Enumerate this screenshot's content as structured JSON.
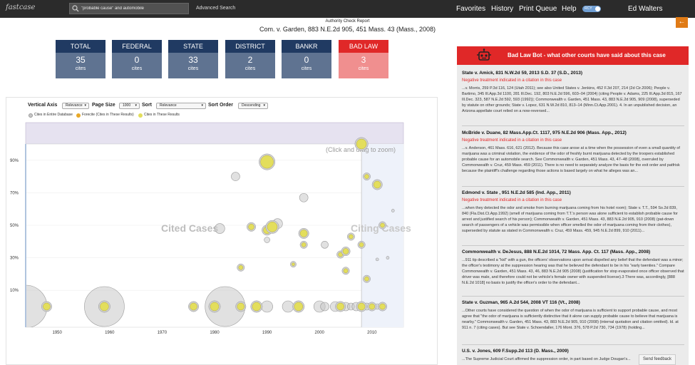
{
  "topbar": {
    "logo": "fastcase",
    "search_value": "\"probable cause\" and automobile",
    "advanced_search": "Advanced Search",
    "nav": [
      "Favorites",
      "History",
      "Print Queue",
      "Help"
    ],
    "toggle_label": "RCY",
    "user": "Ed Walters"
  },
  "report": {
    "title": "Authority Check Report",
    "case": "Com. v. Garden, 883 N.E.2d 905, 451 Mass. 43 (Mass., 2008)"
  },
  "back_arrow": "←",
  "cards": [
    {
      "header": "TOTAL",
      "value": "35",
      "label": "cites"
    },
    {
      "header": "FEDERAL",
      "value": "0",
      "label": "cites"
    },
    {
      "header": "STATE",
      "value": "33",
      "label": "cites"
    },
    {
      "header": "DISTRICT",
      "value": "2",
      "label": "cites"
    },
    {
      "header": "BANKR",
      "value": "0",
      "label": "cites"
    },
    {
      "header": "BAD LAW",
      "value": "3",
      "label": "cites"
    }
  ],
  "controls": {
    "vertical_axis": "Vertical Axis",
    "vertical_axis_value": "Relevance",
    "page_size": "Page Size",
    "page_size_value": "1000",
    "sort": "Sort",
    "sort_value": "Relevance",
    "sort_order": "Sort Order",
    "sort_order_value": "Descending"
  },
  "legend": [
    "Cites in Entire Database",
    "Forecite (Cites in These Results)",
    "Cites in These Results"
  ],
  "colors": {
    "navy": "#203a62",
    "red": "#e02828",
    "orange": "#e07b16",
    "bubble_gray": "#c8c8c8",
    "bubble_yellow": "#e3de5c"
  },
  "chart_data": {
    "type": "scatter",
    "xlim": [
      1944,
      2016
    ],
    "ylim": [
      0,
      100
    ],
    "x_ticks": [
      1950,
      1960,
      1970,
      1980,
      1990,
      2000,
      2010
    ],
    "y_ticks": [
      "10%",
      "30%",
      "50%",
      "70%",
      "90%"
    ],
    "annotations": [
      "Cited Cases",
      "Citing Cases",
      "(Click and drag to zoom)"
    ],
    "cited_boundary_year": 2008,
    "points": [
      {
        "x": 1944,
        "y": 0,
        "r": 30,
        "kind": "gray"
      },
      {
        "x": 1948,
        "y": 0,
        "r": 5,
        "kind": "yellow"
      },
      {
        "x": 1959,
        "y": 0,
        "r": 28,
        "kind": "gray"
      },
      {
        "x": 1959,
        "y": 0,
        "r": 6,
        "kind": "yellow"
      },
      {
        "x": 1982,
        "y": 0,
        "r": 28,
        "kind": "gray"
      },
      {
        "x": 1976,
        "y": 0,
        "r": 5,
        "kind": "yellow"
      },
      {
        "x": 1980,
        "y": 0,
        "r": 6,
        "kind": "yellow"
      },
      {
        "x": 1985,
        "y": 0,
        "r": 5,
        "kind": "yellow"
      },
      {
        "x": 1988,
        "y": 0,
        "r": 6,
        "kind": "yellow"
      },
      {
        "x": 1990,
        "y": 0,
        "r": 8,
        "kind": "gray"
      },
      {
        "x": 1994,
        "y": 0,
        "r": 8,
        "kind": "gray"
      },
      {
        "x": 1996,
        "y": 0,
        "r": 6,
        "kind": "yellow"
      },
      {
        "x": 2000,
        "y": 0,
        "r": 8,
        "kind": "gray"
      },
      {
        "x": 2001,
        "y": 0,
        "r": 6,
        "kind": "gray"
      },
      {
        "x": 2003,
        "y": 0,
        "r": 7,
        "kind": "gray"
      },
      {
        "x": 2004,
        "y": 0,
        "r": 5,
        "kind": "yellow"
      },
      {
        "x": 2005,
        "y": 0,
        "r": 6,
        "kind": "gray"
      },
      {
        "x": 2006,
        "y": 0,
        "r": 5,
        "kind": "gray"
      },
      {
        "x": 2007,
        "y": 0,
        "r": 6,
        "kind": "gray"
      },
      {
        "x": 2008,
        "y": 0,
        "r": 5,
        "kind": "yellow"
      },
      {
        "x": 2009,
        "y": 0,
        "r": 5,
        "kind": "gray"
      },
      {
        "x": 2010,
        "y": 0,
        "r": 4,
        "kind": "yellow"
      },
      {
        "x": 2011,
        "y": 0,
        "r": 4,
        "kind": "gray"
      },
      {
        "x": 2012,
        "y": 0,
        "r": 4,
        "kind": "yellow"
      },
      {
        "x": 1985,
        "y": 24,
        "r": 3,
        "kind": "yellow"
      },
      {
        "x": 1981,
        "y": 48,
        "r": 7,
        "kind": "gray"
      },
      {
        "x": 1987,
        "y": 49,
        "r": 4,
        "kind": "yellow"
      },
      {
        "x": 1990,
        "y": 47,
        "r": 5,
        "kind": "yellow"
      },
      {
        "x": 1991,
        "y": 49,
        "r": 7,
        "kind": "yellow"
      },
      {
        "x": 1992,
        "y": 51,
        "r": 7,
        "kind": "gray"
      },
      {
        "x": 1990,
        "y": 41,
        "r": 4,
        "kind": "gray"
      },
      {
        "x": 1984,
        "y": 80,
        "r": 6,
        "kind": "gray"
      },
      {
        "x": 1990,
        "y": 89,
        "r": 9,
        "kind": "yellow"
      },
      {
        "x": 1997,
        "y": 67,
        "r": 6,
        "kind": "gray"
      },
      {
        "x": 1995,
        "y": 26,
        "r": 2,
        "kind": "yellow"
      },
      {
        "x": 1997,
        "y": 45,
        "r": 5,
        "kind": "yellow"
      },
      {
        "x": 1997,
        "y": 38,
        "r": 3,
        "kind": "yellow"
      },
      {
        "x": 2001,
        "y": 38,
        "r": 5,
        "kind": "gray"
      },
      {
        "x": 2004,
        "y": 32,
        "r": 3,
        "kind": "yellow"
      },
      {
        "x": 2005,
        "y": 34,
        "r": 4,
        "kind": "yellow"
      },
      {
        "x": 2005,
        "y": 22,
        "r": 3,
        "kind": "yellow"
      },
      {
        "x": 2006,
        "y": 43,
        "r": 3,
        "kind": "yellow"
      },
      {
        "x": 2008,
        "y": 38,
        "r": 3,
        "kind": "yellow"
      },
      {
        "x": 2009,
        "y": 80,
        "r": 3,
        "kind": "yellow"
      },
      {
        "x": 2011,
        "y": 75,
        "r": 5,
        "kind": "yellow"
      },
      {
        "x": 2008,
        "y": 100,
        "r": 7,
        "kind": "yellow"
      },
      {
        "x": 2009,
        "y": 17,
        "r": 3,
        "kind": "yellow"
      },
      {
        "x": 2011,
        "y": 29,
        "r": 2,
        "kind": "gray"
      },
      {
        "x": 2012,
        "y": 50,
        "r": 3,
        "kind": "yellow"
      },
      {
        "x": 2013,
        "y": 30,
        "r": 2,
        "kind": "gray"
      },
      {
        "x": 2014,
        "y": 59,
        "r": 2,
        "kind": "gray"
      }
    ]
  },
  "bad_law_bot": "Bad Law Bot - what other courts have said about this case",
  "results": [
    {
      "title": "State v. Amick, 831 N.W.2d 59, 2013 S.D. 37 (S.D., 2013)",
      "negative": "Negative treatment indicated in a citation in this case",
      "snippet": "...v. Morris, 259 P.3d 116, 124 (Utah 2011); see also United States v. Jenkins, 452 F.3d 207, 214 (2d Cir.2006); People v. Bartimo, 345 Ill.App.3d 1100, 281 Ill.Dec. 192, 803 N.E.2d 596, 603–04 (2004) (citing People v. Adams, 225 Ill.App.3d 815, 167 Ill.Dec. 323, 587 N.E.2d 592, 593 (1992)); Commonwealth v. Garden, 451 Mass. 43, 883 N.E.2d 905, 909 (2008), superseded by statute on other grounds; State v. Lopez, 631 N.W.2d 810, 813–14 (Minn.Ct.App.2001). 4. In an unpublished decision, an Arizona appellate court relied on a now-reversed..."
    },
    {
      "title": "McBride v. Duane, 82 Mass.App.Ct. 1117, 975 N.E.2d 906 (Mass. App., 2012)",
      "negative": "Negative treatment indicated in a citation in this case",
      "snippet": "...v. Anderson, 461 Mass. 616, 621 (2012). Because this case arose at a time when the possession of even a small quantity of marijuana was a criminal violation, the evidence of the odor of freshly burnt marijuana detected by the troopers established probable cause for an automobile search. See Commonwealth v. Garden, 451 Mass. 43, 47–48 (2008), overruled by Commonwealth v. Cruz, 459 Mass. 459 (2011). There is no need to separately analyze the basis for the exit order and patfrisk because the plaintiff's challenge regarding those actions is based largely on what he alleges was an..."
    },
    {
      "title": "Edmond v. State , 951 N.E.2d 585 (Ind. App., 2011)",
      "negative": "Negative treatment indicated in a citation in this case",
      "snippet": "...when they detected the odor and smoke from burning marijuana coming from his hotel room); State v. T.T., 594 So.2d 839, 840 (Fla.Dist.Ct.App.1992) (smell of marijuana coming from T.T.'s person was alone sufficient to establish probable cause for arrest and justified search of his person); Commonwealth v. Garden, 451 Mass. 43, 883 N.E.2d 905, 910 (2008) (pat-down search of passengers of a vehicle was permissible when officer smelled the odor of marijuana coming from their clothes), superseded by statute as stated in Commonwealth v. Cruz, 459 Mass. 459, 945 N.E.2d 899, 910 (2011)..."
    },
    {
      "title": "Commonwealth v. DeJesus, 888 N.E.2d 1014, 72 Mass. App. Ct. 117 (Mass. App., 2008)",
      "negative": "",
      "snippet": "...911 tip described a \"kid\" with a gun, the officers' observations upon arrival dispelled any belief that the defendant was a minor; the officer's testimony at the suppression hearing was that he believed the defendant to be in his \"early twenties.\" Compare Commonwealth v. Garden, 451 Mass. 43, 46, 883 N.E.2d 905 (2008) (justification for stop evaporated once officer observed that driver was male, and therefore could not be vehicle's female owner with suspended license).3 There was, accordingly, [888 N.E.2d 1018] no basis to justify the officer's order to the defendant..."
    },
    {
      "title": "State v. Guzman, 965 A.2d 544, 2008 VT 116 (Vt., 2008)",
      "negative": "",
      "snippet": "...Other courts have considered the question of when the odor of marijuana is sufficient to support probable cause, and most agree that \"the odor of marijuana is sufficiently distinctive that it alone can supply probable cause to believe that marijuana is nearby.\" Commonwealth v. Garden, 451 Mass. 43, 883 N.E.2d 905, 910 (2008) (internal quotation and citation omitted). Id. at 911 n. 7 (citing cases). But see State v. Schoendaller, 176 Mont. 376, 578 P.2d 730, 734 (1978) (holding..."
    },
    {
      "title": "U.S. v. Jones, 609 F.Supp.2d 113 (D. Mass., 2009)",
      "negative": "",
      "snippet": "...The Supreme Judicial Court affirmed the suppression order, in part based on Judge Dougan's..."
    }
  ],
  "feedback": "Send feedback"
}
